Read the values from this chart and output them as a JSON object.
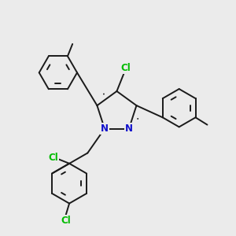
{
  "background_color": "#ebebeb",
  "bond_color": "#1a1a1a",
  "bond_width": 1.4,
  "atom_colors": {
    "N": "#1010cc",
    "Cl_green": "#00bb00"
  },
  "font_size": 8.5
}
